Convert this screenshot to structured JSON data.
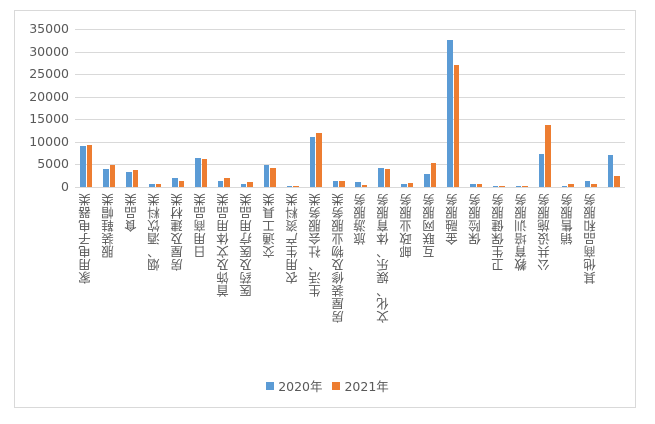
{
  "chart_data": {
    "type": "bar",
    "title": "",
    "xlabel": "",
    "ylabel": "",
    "ylim": [
      0,
      35000
    ],
    "yticks": [
      0,
      5000,
      10000,
      15000,
      20000,
      25000,
      30000,
      35000
    ],
    "ytick_labels": [
      "0",
      "5000",
      "10000",
      "15000",
      "20000",
      "25000",
      "30000",
      "35000"
    ],
    "grid": true,
    "legend_position": "bottom",
    "categories": [
      "家用电子电器类",
      "服装鞋帽类",
      "食品类",
      "烟、酒饮料类",
      "房屋及建材类",
      "日用商品类",
      "首饰及文体用品类",
      "医药及医疗用品类",
      "交通工具类",
      "农用生产资料类",
      "生活、社会服务类",
      "房屋装修及物业服务类",
      "旅游服务",
      "文化、娱乐、体育服务",
      "邮政业服务",
      "互联网服务",
      "金融服务",
      "保险服务",
      "卫生保健服务",
      "教育培训服务",
      "公共设施服务",
      "销售服务",
      "其他商品和服务",
      ""
    ],
    "series": [
      {
        "name": "2020年",
        "color": "#5b9bd5",
        "values": [
          9000,
          4050,
          3350,
          700,
          2000,
          6500,
          1350,
          700,
          4900,
          200,
          11000,
          1350,
          1100,
          4250,
          700,
          2900,
          32500,
          700,
          200,
          200,
          7300,
          200,
          1350,
          7100
        ]
      },
      {
        "name": "2021年",
        "color": "#ed7d31",
        "values": [
          9400,
          4900,
          3800,
          700,
          1350,
          6250,
          2000,
          1100,
          4250,
          200,
          11900,
          1350,
          450,
          4050,
          900,
          5400,
          27000,
          700,
          200,
          200,
          13700,
          700,
          700,
          2450
        ]
      }
    ]
  },
  "legend": {
    "items": [
      {
        "label": "2020年",
        "color": "#5b9bd5"
      },
      {
        "label": "2021年",
        "color": "#ed7d31"
      }
    ]
  }
}
